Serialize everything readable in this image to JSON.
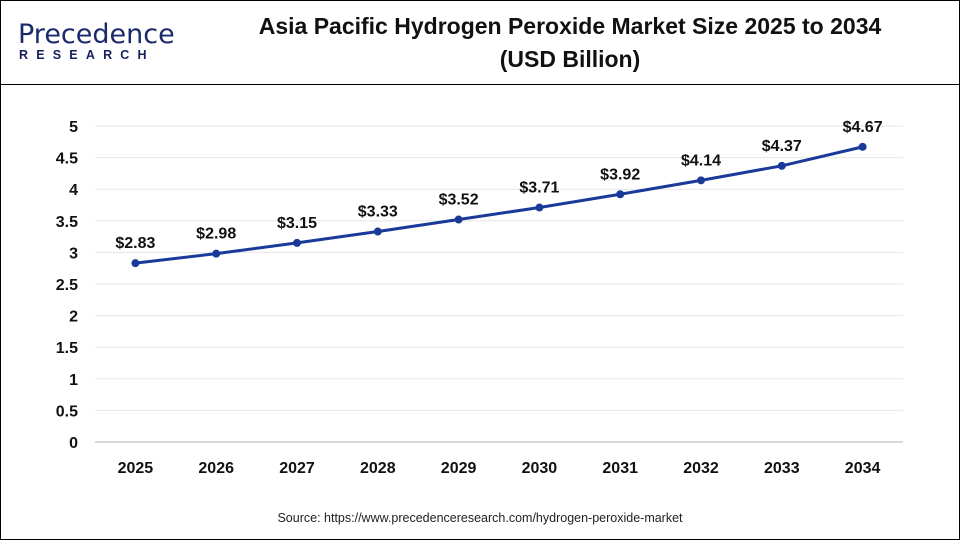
{
  "logo": {
    "line1": "Precedence",
    "line2": "RESEARCH"
  },
  "header": {
    "title_line1": "Asia Pacific Hydrogen Peroxide Market Size 2025 to 2034",
    "title_line2": "(USD Billion)"
  },
  "source": "Source: https://www.precedenceresearch.com/hydrogen-peroxide-market",
  "colors": {
    "line": "#1a3a9a",
    "grid": "#e6e6e6",
    "axis": "#b0b0b0"
  },
  "chart_data": {
    "type": "line",
    "title": "Asia Pacific Hydrogen Peroxide Market Size 2025 to 2034 (USD Billion)",
    "categories": [
      "2025",
      "2026",
      "2027",
      "2028",
      "2029",
      "2030",
      "2031",
      "2032",
      "2033",
      "2034"
    ],
    "values": [
      2.83,
      2.98,
      3.15,
      3.33,
      3.52,
      3.71,
      3.92,
      4.14,
      4.37,
      4.67
    ],
    "data_labels": [
      "$2.83",
      "$2.98",
      "$3.15",
      "$3.33",
      "$3.52",
      "$3.71",
      "$3.92",
      "$4.14",
      "$4.37",
      "$4.67"
    ],
    "yticks": [
      "0",
      "0.5",
      "1",
      "1.5",
      "2",
      "2.5",
      "3",
      "3.5",
      "4",
      "4.5",
      "5"
    ],
    "ylim": [
      0,
      5
    ],
    "grid": true,
    "xlabel": "",
    "ylabel": ""
  }
}
